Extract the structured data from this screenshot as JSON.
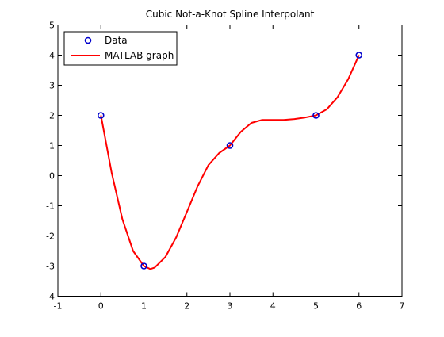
{
  "chart_data": {
    "type": "line",
    "title": "Cubic Not-a-Knot Spline Interpolant",
    "xlabel": "",
    "ylabel": "",
    "xlim": [
      -1,
      7
    ],
    "ylim": [
      -4,
      5
    ],
    "xticks": [
      -1,
      0,
      1,
      2,
      3,
      4,
      5,
      6,
      7
    ],
    "yticks": [
      -4,
      -3,
      -2,
      -1,
      0,
      1,
      2,
      3,
      4,
      5
    ],
    "grid": false,
    "legend_position": "top-left",
    "series": [
      {
        "name": "Data",
        "style": "markers",
        "marker": "circle",
        "color": "#0000cc",
        "x": [
          0,
          1,
          3,
          5,
          6
        ],
        "y": [
          2,
          -3,
          1,
          2,
          4
        ]
      },
      {
        "name": "MATLAB graph",
        "style": "line",
        "color": "#ff0000",
        "x": [
          0,
          0.25,
          0.5,
          0.75,
          1.0,
          1.15,
          1.25,
          1.5,
          1.75,
          2.0,
          2.25,
          2.5,
          2.75,
          3.0,
          3.25,
          3.5,
          3.75,
          4.0,
          4.25,
          4.5,
          4.75,
          5.0,
          5.25,
          5.5,
          5.75,
          6.0
        ],
        "y": [
          2,
          0.1,
          -1.45,
          -2.5,
          -3.0,
          -3.1,
          -3.05,
          -2.7,
          -2.05,
          -1.2,
          -0.35,
          0.35,
          0.75,
          1.0,
          1.45,
          1.75,
          1.85,
          1.85,
          1.85,
          1.88,
          1.93,
          2.0,
          2.2,
          2.6,
          3.2,
          4.0
        ]
      }
    ]
  }
}
